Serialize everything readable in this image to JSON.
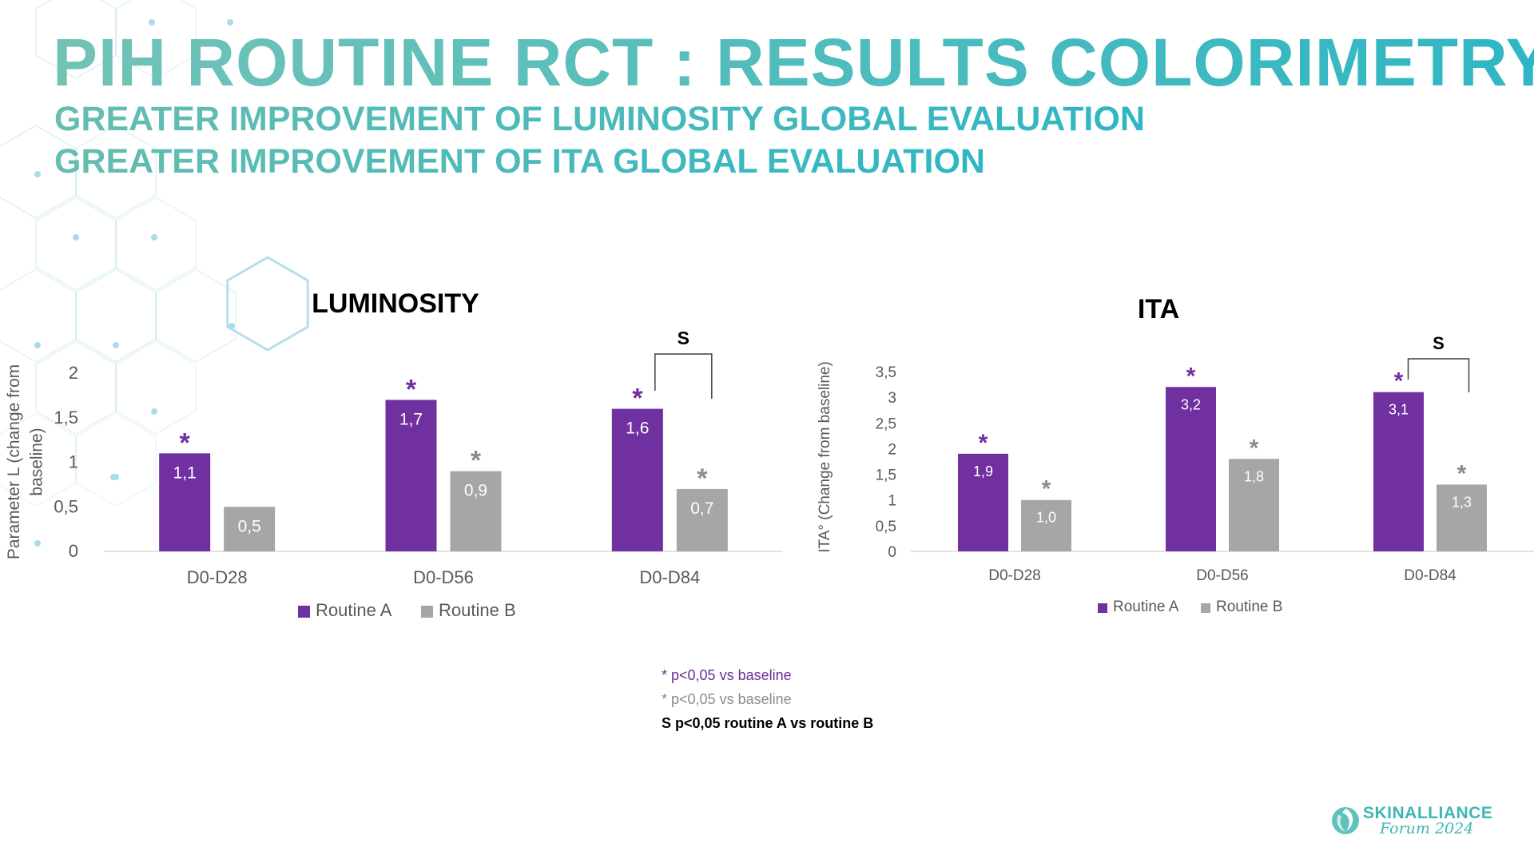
{
  "slide": {
    "title": "PIH ROUTINE RCT : RESULTS COLORIMETRY",
    "subtitles": [
      "GREATER IMPROVEMENT OF LUMINOSITY GLOBAL EVALUATION",
      "GREATER IMPROVEMENT OF ITA GLOBAL EVALUATION"
    ]
  },
  "colors": {
    "routine_a": "#7030a0",
    "routine_b": "#a6a6a6",
    "accent": "#2eb6c4"
  },
  "chart_data": [
    {
      "type": "bar",
      "title": "LUMINOSITY",
      "ylabel": "Parameter L (change from baseline)",
      "ylabel_lines": [
        "Parameter L (change from",
        "baseline)"
      ],
      "categories": [
        "D0-D28",
        "D0-D56",
        "D0-D84"
      ],
      "series": [
        {
          "name": "Routine A",
          "values": [
            1.1,
            1.7,
            1.6
          ],
          "labels": [
            "1,1",
            "1,7",
            "1,6"
          ],
          "significant": [
            true,
            true,
            true
          ]
        },
        {
          "name": "Routine B",
          "values": [
            0.5,
            0.9,
            0.7
          ],
          "labels": [
            "0,5",
            "0,9",
            "0,7"
          ],
          "significant": [
            false,
            true,
            true
          ]
        }
      ],
      "ylim": [
        0,
        2
      ],
      "yticks": [
        0,
        0.5,
        1,
        1.5,
        2
      ],
      "ytick_labels": [
        "0",
        "0,5",
        "1",
        "1,5",
        "2"
      ],
      "significance_bracket": {
        "category_index": 2,
        "label": "S"
      },
      "legend_position": "bottom",
      "grid": false
    },
    {
      "type": "bar",
      "title": "ITA",
      "ylabel": "ITA° (Change from baseline)",
      "ylabel_lines": [
        "ITA° (Change from baseline)"
      ],
      "categories": [
        "D0-D28",
        "D0-D56",
        "D0-D84"
      ],
      "series": [
        {
          "name": "Routine A",
          "values": [
            1.9,
            3.2,
            3.1
          ],
          "labels": [
            "1,9",
            "3,2",
            "3,1"
          ],
          "significant": [
            true,
            true,
            true
          ]
        },
        {
          "name": "Routine B",
          "values": [
            1.0,
            1.8,
            1.3
          ],
          "labels": [
            "1,0",
            "1,8",
            "1,3"
          ],
          "significant": [
            true,
            true,
            true
          ]
        }
      ],
      "ylim": [
        0,
        3.5
      ],
      "yticks": [
        0,
        0.5,
        1,
        1.5,
        2,
        2.5,
        3,
        3.5
      ],
      "ytick_labels": [
        "0",
        "0,5",
        "1",
        "1,5",
        "2",
        "2,5",
        "3",
        "3,5"
      ],
      "significance_bracket": {
        "category_index": 2,
        "label": "S"
      },
      "legend_position": "bottom",
      "grid": false
    }
  ],
  "significance_marker": "*",
  "footnotes": {
    "routine_a": "* p<0,05 vs baseline",
    "routine_b": "* p<0,05 vs baseline",
    "s": "S p<0,05 routine A vs routine B"
  },
  "logo": {
    "name": "SKINALLIANCE",
    "subtitle": "Forum 2024",
    "mark_icon": "swirl-icon"
  }
}
